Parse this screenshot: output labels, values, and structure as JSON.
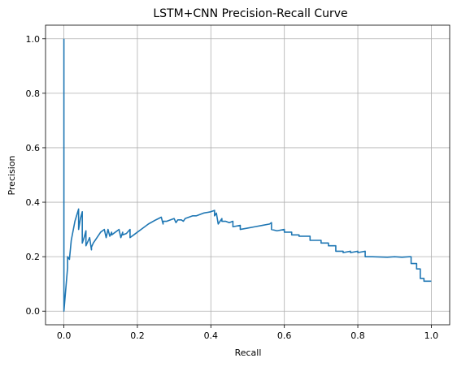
{
  "chart_data": {
    "type": "line",
    "title": "LSTM+CNN Precision-Recall Curve",
    "xlabel": "Recall",
    "ylabel": "Precision",
    "xlim": [
      -0.05,
      1.05
    ],
    "ylim": [
      -0.05,
      1.05
    ],
    "xticks": [
      "0.0",
      "0.2",
      "0.4",
      "0.6",
      "0.8",
      "1.0"
    ],
    "yticks": [
      "0.0",
      "0.2",
      "0.4",
      "0.6",
      "0.8",
      "1.0"
    ],
    "xtick_values": [
      0,
      0.2,
      0.4,
      0.6,
      0.8,
      1.0
    ],
    "ytick_values": [
      0,
      0.2,
      0.4,
      0.6,
      0.8,
      1.0
    ],
    "grid": true,
    "line_color": "#1f77b4",
    "series": [
      {
        "x": [
          0,
          0,
          0,
          0.005,
          0.01,
          0.01,
          0.015,
          0.02,
          0.03,
          0.04,
          0.04,
          0.045,
          0.05,
          0.05,
          0.055,
          0.06,
          0.06,
          0.065,
          0.07,
          0.075,
          0.075,
          0.08,
          0.09,
          0.1,
          0.11,
          0.115,
          0.12,
          0.125,
          0.13,
          0.13,
          0.14,
          0.15,
          0.155,
          0.16,
          0.16,
          0.17,
          0.18,
          0.18,
          0.19,
          0.2,
          0.21,
          0.22,
          0.23,
          0.25,
          0.265,
          0.27,
          0.27,
          0.28,
          0.3,
          0.305,
          0.31,
          0.32,
          0.325,
          0.33,
          0.34,
          0.35,
          0.36,
          0.38,
          0.4,
          0.41,
          0.41,
          0.415,
          0.42,
          0.43,
          0.43,
          0.44,
          0.45,
          0.46,
          0.46,
          0.48,
          0.48,
          0.5,
          0.52,
          0.54,
          0.56,
          0.565,
          0.565,
          0.58,
          0.6,
          0.6,
          0.62,
          0.62,
          0.64,
          0.64,
          0.67,
          0.67,
          0.7,
          0.7,
          0.72,
          0.72,
          0.74,
          0.74,
          0.76,
          0.76,
          0.78,
          0.78,
          0.8,
          0.8,
          0.82,
          0.82,
          0.84,
          0.84,
          0.88,
          0.9,
          0.92,
          0.94,
          0.945,
          0.945,
          0.96,
          0.96,
          0.97,
          0.97,
          0.98,
          0.98,
          1.0
        ],
        "y": [
          1.0,
          0.0,
          0.0,
          0.08,
          0.16,
          0.2,
          0.19,
          0.26,
          0.33,
          0.375,
          0.3,
          0.34,
          0.365,
          0.25,
          0.27,
          0.295,
          0.24,
          0.255,
          0.27,
          0.225,
          0.235,
          0.25,
          0.27,
          0.29,
          0.3,
          0.27,
          0.3,
          0.275,
          0.29,
          0.28,
          0.29,
          0.3,
          0.27,
          0.29,
          0.28,
          0.285,
          0.3,
          0.27,
          0.28,
          0.29,
          0.3,
          0.31,
          0.32,
          0.335,
          0.345,
          0.32,
          0.33,
          0.33,
          0.34,
          0.325,
          0.335,
          0.335,
          0.33,
          0.34,
          0.345,
          0.35,
          0.35,
          0.36,
          0.365,
          0.37,
          0.35,
          0.36,
          0.32,
          0.34,
          0.33,
          0.33,
          0.325,
          0.33,
          0.31,
          0.315,
          0.3,
          0.305,
          0.31,
          0.315,
          0.32,
          0.325,
          0.3,
          0.295,
          0.3,
          0.29,
          0.29,
          0.28,
          0.28,
          0.275,
          0.275,
          0.26,
          0.26,
          0.25,
          0.25,
          0.24,
          0.24,
          0.22,
          0.22,
          0.215,
          0.22,
          0.215,
          0.22,
          0.215,
          0.22,
          0.2,
          0.2,
          0.2,
          0.198,
          0.2,
          0.198,
          0.2,
          0.2,
          0.175,
          0.175,
          0.155,
          0.155,
          0.12,
          0.12,
          0.11,
          0.11
        ]
      }
    ]
  }
}
